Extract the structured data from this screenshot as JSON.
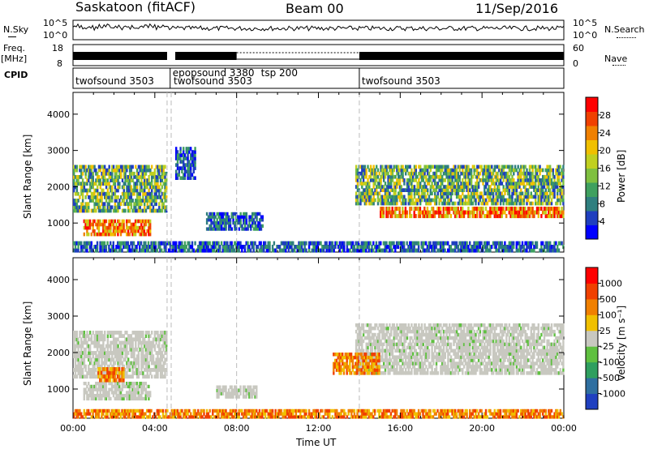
{
  "header": {
    "station": "Saskatoon (fitACF)",
    "beam": "Beam 00",
    "date": "11/Sep/2016"
  },
  "left_labels": {
    "nsky": "N.Sky",
    "freq": "Freq.",
    "freq_unit": "[MHz]",
    "cpid": "CPID"
  },
  "right_labels": {
    "nsearch": "N.Search",
    "nave": "Nave"
  },
  "noise_panel": {
    "ticks_left": [
      "10^5",
      "10^0"
    ],
    "ticks_right": [
      "10^5",
      "10^0"
    ]
  },
  "freq_panel": {
    "ticks_left": [
      "18",
      "8"
    ],
    "ticks_right": [
      "60",
      "0"
    ]
  },
  "cpid_labels": [
    {
      "text": "twofsound 3503",
      "hour": 0.0
    },
    {
      "text": "epopsound 3380",
      "hour": 4.75
    },
    {
      "text": "twofsound 3503",
      "hour": 4.8
    },
    {
      "text": "tsp 200",
      "hour": 8.0
    },
    {
      "text": "twofsound 3503",
      "hour": 14.0
    }
  ],
  "chart_data": [
    {
      "type": "heatmap",
      "name": "power",
      "ylabel": "Slant Range [km]",
      "ylim": [
        200,
        4600
      ],
      "yticks": [
        "1000",
        "2000",
        "3000",
        "4000"
      ],
      "xlim": [
        0,
        24
      ],
      "colorbar": {
        "label": "Power [dB]",
        "ticks": [
          "28",
          "24",
          "20",
          "16",
          "12",
          "8",
          "4"
        ],
        "colors": [
          "#0000ff",
          "#1f3fbf",
          "#2f7f7f",
          "#3fa05f",
          "#7fc040",
          "#c0d020",
          "#f0c000",
          "#f08000",
          "#f04000",
          "#ff0000"
        ]
      },
      "bands": [
        {
          "t0": 0.0,
          "t1": 4.6,
          "r0": 1300,
          "r1": 2600,
          "level": "mid"
        },
        {
          "t0": 0.5,
          "t1": 3.8,
          "r0": 650,
          "r1": 1100,
          "level": "high"
        },
        {
          "t0": 5.0,
          "t1": 6.0,
          "r0": 2200,
          "r1": 3100,
          "level": "low"
        },
        {
          "t0": 6.5,
          "t1": 9.3,
          "r0": 800,
          "r1": 1300,
          "level": "low"
        },
        {
          "t0": 13.8,
          "t1": 24.0,
          "r0": 1500,
          "r1": 2600,
          "level": "mid"
        },
        {
          "t0": 15.0,
          "t1": 24.0,
          "r0": 1150,
          "r1": 1450,
          "level": "high"
        },
        {
          "t0": 0.0,
          "t1": 24.0,
          "r0": 200,
          "r1": 500,
          "level": "low"
        }
      ]
    },
    {
      "type": "heatmap",
      "name": "velocity",
      "ylabel": "Slant Range [km]",
      "xlabel": "Time UT",
      "ylim": [
        200,
        4600
      ],
      "yticks": [
        "1000",
        "2000",
        "3000",
        "4000"
      ],
      "xlim": [
        0,
        24
      ],
      "xticks": [
        "00:00",
        "04:00",
        "08:00",
        "12:00",
        "16:00",
        "20:00",
        "00:00"
      ],
      "colorbar": {
        "label": "Velocity [m s⁻¹]",
        "ticks": [
          "1000",
          "500",
          "100",
          "25",
          "-25",
          "-100",
          "-500",
          "-1000"
        ],
        "colors": [
          "#2040c0",
          "#2f6fa0",
          "#2f9f5f",
          "#5fc040",
          "#c8c8c0",
          "#f0c000",
          "#f08000",
          "#f04000",
          "#ff0000"
        ]
      },
      "bands": [
        {
          "t0": 0.0,
          "t1": 4.6,
          "r0": 1300,
          "r1": 2600,
          "level": "gray"
        },
        {
          "t0": 0.5,
          "t1": 3.8,
          "r0": 700,
          "r1": 1200,
          "level": "gray"
        },
        {
          "t0": 1.2,
          "t1": 2.5,
          "r0": 1200,
          "r1": 1600,
          "level": "orange"
        },
        {
          "t0": 7.0,
          "t1": 9.0,
          "r0": 750,
          "r1": 1100,
          "level": "gray"
        },
        {
          "t0": 13.8,
          "t1": 24.0,
          "r0": 1400,
          "r1": 2800,
          "level": "gray"
        },
        {
          "t0": 12.7,
          "t1": 15.0,
          "r0": 1400,
          "r1": 2000,
          "level": "orange"
        },
        {
          "t0": 0.0,
          "t1": 24.0,
          "r0": 200,
          "r1": 450,
          "level": "orange"
        }
      ]
    }
  ]
}
